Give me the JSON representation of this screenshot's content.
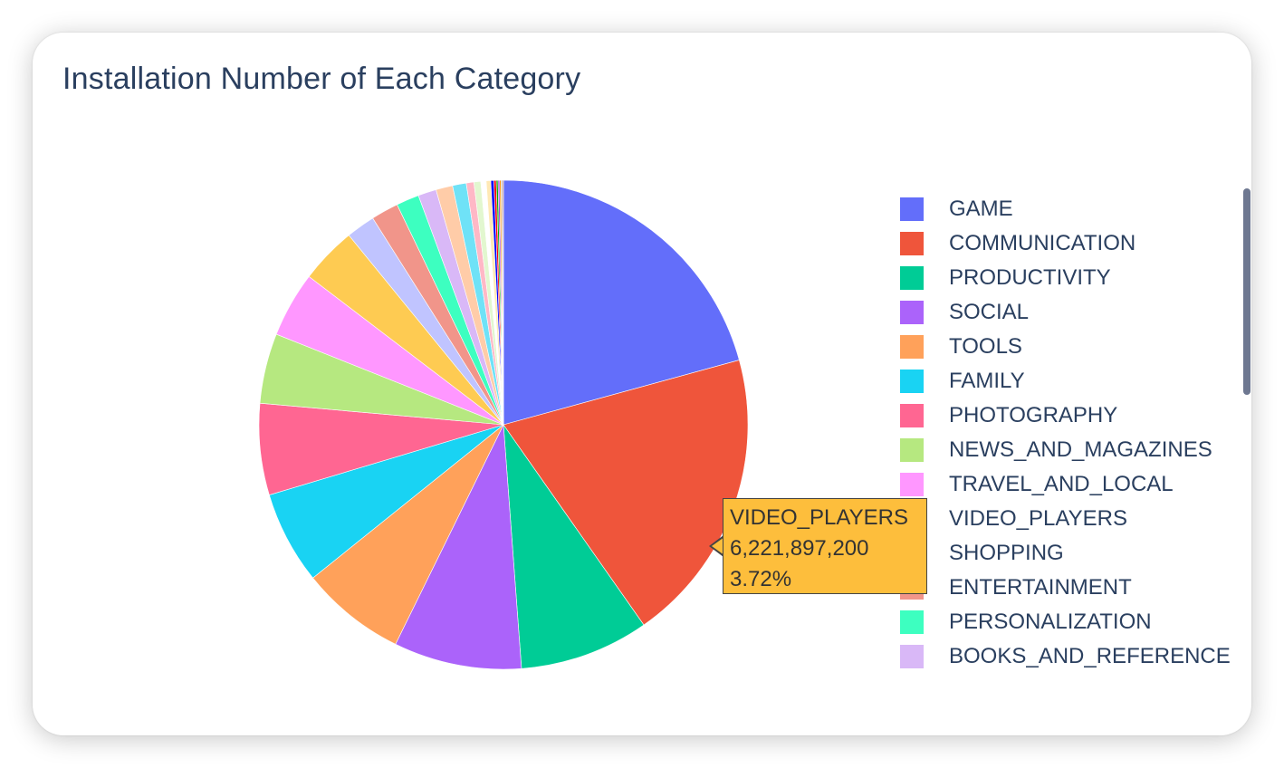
{
  "chart_data": {
    "type": "pie",
    "title": "Installation Number of Each Category",
    "slices": [
      {
        "label": "GAME",
        "percent": 20.6,
        "color": "#636efa"
      },
      {
        "label": "COMMUNICATION",
        "percent": 19.4,
        "color": "#ef553b"
      },
      {
        "label": "PRODUCTIVITY",
        "percent": 8.5,
        "color": "#00cc96"
      },
      {
        "label": "SOCIAL",
        "percent": 8.4,
        "color": "#ab63fa"
      },
      {
        "label": "TOOLS",
        "percent": 6.9,
        "color": "#ffa15a"
      },
      {
        "label": "FAMILY",
        "percent": 6.1,
        "color": "#19d3f3"
      },
      {
        "label": "PHOTOGRAPHY",
        "percent": 6.0,
        "color": "#ff6692"
      },
      {
        "label": "NEWS_AND_MAGAZINES",
        "percent": 4.6,
        "color": "#b6e880"
      },
      {
        "label": "TRAVEL_AND_LOCAL",
        "percent": 4.3,
        "color": "#ff97ff"
      },
      {
        "label": "VIDEO_PLAYERS",
        "percent": 3.72,
        "value": "6,221,897,200",
        "color": "#fecb52"
      },
      {
        "label": "SHOPPING",
        "percent": 1.9,
        "color": "#c0c4ff"
      },
      {
        "label": "ENTERTAINMENT",
        "percent": 1.8,
        "color": "#f1958a"
      },
      {
        "label": "PERSONALIZATION",
        "percent": 1.5,
        "color": "#3dffc0"
      },
      {
        "label": "BOOKS_AND_REFERENCE",
        "percent": 1.2,
        "color": "#d9b8f7"
      },
      {
        "label": "",
        "percent": 1.1,
        "color": "#ffcca8"
      },
      {
        "label": "",
        "percent": 0.9,
        "color": "#6fe2f7"
      },
      {
        "label": "",
        "percent": 0.5,
        "color": "#ffb8c6"
      },
      {
        "label": "",
        "percent": 0.45,
        "color": "#e2f7cf"
      },
      {
        "label": "",
        "percent": 0.35,
        "color": "#ffffff"
      },
      {
        "label": "",
        "percent": 0.3,
        "color": "#ffe9b5"
      },
      {
        "label": "",
        "percent": 0.2,
        "color": "#0000ff"
      },
      {
        "label": "",
        "percent": 0.15,
        "color": "#ff0000"
      },
      {
        "label": "",
        "percent": 0.12,
        "color": "#00aa00"
      },
      {
        "label": "",
        "percent": 0.1,
        "color": "#8a2be2"
      },
      {
        "label": "",
        "percent": 0.1,
        "color": "#ff8c00"
      },
      {
        "label": "",
        "percent": 0.08,
        "color": "#aaaaaa"
      },
      {
        "label": "",
        "percent": 0.07,
        "color": "#c08080"
      }
    ],
    "legend_placement": "right",
    "hover": {
      "label": "VIDEO_PLAYERS",
      "value": "6,221,897,200",
      "percent_text": "3.72%"
    }
  }
}
